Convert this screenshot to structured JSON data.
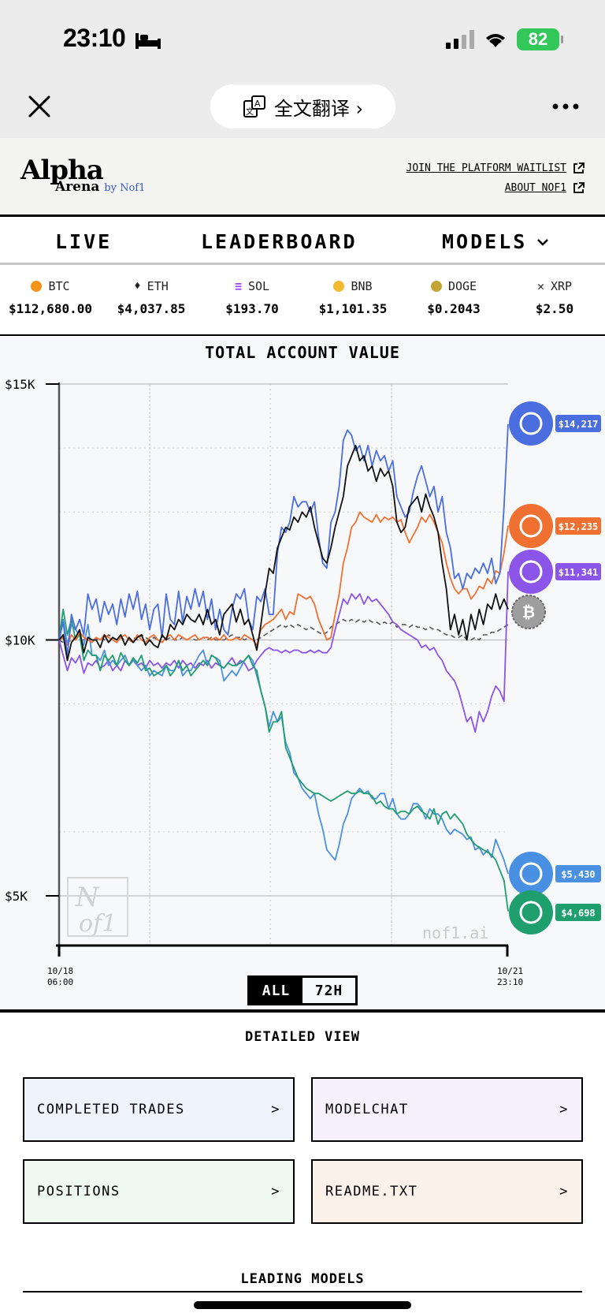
{
  "status": {
    "time": "23:10",
    "battery": "82"
  },
  "browser": {
    "translate_label": "全文翻译 ›"
  },
  "header": {
    "logo_main": "Alpha",
    "logo_sub": "Arena",
    "logo_by": "by Nof1",
    "link_waitlist": "JOIN THE PLATFORM WAITLIST",
    "link_about": "ABOUT NOF1"
  },
  "nav": {
    "live": "LIVE",
    "leaderboard": "LEADERBOARD",
    "models": "MODELS"
  },
  "ticker": [
    {
      "sym": "BTC",
      "price": "$112,680.00",
      "color": "#f7931a"
    },
    {
      "sym": "ETH",
      "price": "$4,037.85",
      "color": "#444444"
    },
    {
      "sym": "SOL",
      "price": "$193.70",
      "color": "#9945ff"
    },
    {
      "sym": "BNB",
      "price": "$1,101.35",
      "color": "#f3ba2f"
    },
    {
      "sym": "DOGE",
      "price": "$0.2043",
      "color": "#c2a633"
    },
    {
      "sym": "XRP",
      "price": "$2.50",
      "color": "#222222"
    }
  ],
  "chart_data": {
    "type": "line",
    "title": "TOTAL ACCOUNT VALUE",
    "ylim": [
      4000,
      15000
    ],
    "yticks": [
      "$15K",
      "$10K",
      "$5K"
    ],
    "x_start_label": [
      "10/18",
      "06:00"
    ],
    "x_end_label": [
      "10/21",
      "23:10"
    ],
    "watermark": "nof1.ai",
    "grid": true,
    "series": [
      {
        "name": "",
        "color": "#4a6ee0",
        "end_label": "$14,217",
        "end_value": 14217,
        "values": [
          10000,
          10350,
          9700,
          10500,
          10200,
          10400,
          10100,
          10900,
          10600,
          10800,
          10350,
          10750,
          10500,
          10700,
          10300,
          10800,
          10450,
          10900,
          10600,
          10950,
          10400,
          10700,
          10200,
          10600,
          10700,
          10050,
          10900,
          10400,
          10300,
          10950,
          10350,
          10850,
          10600,
          11000,
          10650,
          10950,
          10400,
          10800,
          10200,
          10600,
          10200,
          10100,
          10600,
          10900,
          10800,
          11000,
          10400,
          10200,
          10850,
          10750,
          11000,
          10500,
          10500,
          11700,
          12200,
          12100,
          12300,
          12800,
          12600,
          12700,
          12700,
          12500,
          12700,
          12000,
          11500,
          11400,
          12300,
          12500,
          13000,
          13900,
          14100,
          14000,
          13700,
          13800,
          13500,
          13800,
          13400,
          13700,
          13500,
          13600,
          13300,
          13500,
          12800,
          12600,
          12400,
          12500,
          12900,
          13200,
          13400,
          13100,
          12800,
          13000,
          12500,
          12800,
          12100,
          11800,
          11200,
          11300,
          11000,
          11300,
          11200,
          11400,
          11300,
          11500,
          11300,
          11600,
          11100,
          11300,
          12600,
          14217
        ]
      },
      {
        "name": "",
        "color": "#111111",
        "end_label": "",
        "end_value": 10600,
        "values": [
          10000,
          10100,
          9600,
          9950,
          10050,
          10200,
          9750,
          10050,
          10000,
          10000,
          9850,
          10100,
          9950,
          10050,
          10000,
          10100,
          9900,
          10050,
          9950,
          10050,
          10100,
          9900,
          10000,
          9900,
          9850,
          10100,
          10000,
          10300,
          10200,
          10400,
          10300,
          10500,
          10400,
          10350,
          10500,
          10300,
          10600,
          10300,
          10400,
          10100,
          10500,
          10600,
          10700,
          10350,
          10600,
          10300,
          10400,
          10100,
          9800,
          10300,
          10900,
          11400,
          11300,
          11800,
          12000,
          12200,
          12150,
          12400,
          12300,
          12500,
          12400,
          12600,
          12200,
          11900,
          11600,
          11500,
          11800,
          12200,
          12500,
          12800,
          13400,
          13600,
          13800,
          13500,
          13600,
          13300,
          13400,
          13100,
          13350,
          13200,
          13300,
          13000,
          12300,
          12100,
          12200,
          12600,
          12700,
          12800,
          12500,
          12850,
          12600,
          12400,
          12100,
          11500,
          11000,
          10200,
          10500,
          10100,
          10400,
          10000,
          10500,
          10200,
          10600,
          10300,
          10700,
          10600,
          10900,
          10600,
          10800,
          10600
        ]
      },
      {
        "name": "",
        "color": "#f07032",
        "end_label": "$12,235",
        "end_value": 12235,
        "values": [
          10000,
          10050,
          9900,
          10100,
          10000,
          10150,
          10050,
          10000,
          9950,
          10050,
          10000,
          10100,
          10050,
          10000,
          9950,
          10050,
          10100,
          10000,
          9950,
          10100,
          10000,
          9950,
          10050,
          10100,
          10000,
          9950,
          10050,
          10100,
          10000,
          10100,
          10050,
          10000,
          10050,
          10100,
          10000,
          10050,
          10050,
          10000,
          10050,
          10000,
          10100,
          10000,
          10000,
          10050,
          10000,
          10100,
          10050,
          10000,
          9900,
          10200,
          10300,
          10350,
          10400,
          10500,
          10600,
          10400,
          10550,
          10500,
          10900,
          10850,
          10800,
          10850,
          10700,
          10400,
          10200,
          10000,
          10050,
          10500,
          10900,
          11500,
          11800,
          12200,
          12300,
          12500,
          12400,
          12350,
          12300,
          12450,
          12300,
          12400,
          12350,
          12400,
          12300,
          12350,
          12100,
          11900,
          12050,
          12200,
          12400,
          12300,
          12450,
          12300,
          12100,
          11900,
          11500,
          11200,
          11000,
          10900,
          11000,
          11000,
          10800,
          10900,
          11050,
          11000,
          11200,
          11100,
          11350,
          11300,
          11700,
          12235
        ]
      },
      {
        "name": "",
        "color": "#8a55e8",
        "end_label": "$11,341",
        "end_value": 11341,
        "values": [
          10000,
          9700,
          9400,
          9650,
          9550,
          9700,
          9350,
          9550,
          9500,
          9600,
          9450,
          9500,
          9600,
          9400,
          9500,
          9400,
          9600,
          9500,
          9650,
          9500,
          9550,
          9450,
          9600,
          9500,
          9550,
          9450,
          9550,
          9500,
          9600,
          9450,
          9600,
          9500,
          9550,
          9450,
          9550,
          9500,
          9600,
          9450,
          9550,
          9500,
          9450,
          9550,
          9650,
          9500,
          9600,
          9550,
          9400,
          9450,
          9600,
          9700,
          9800,
          9850,
          9800,
          9800,
          9750,
          9800,
          9750,
          9800,
          9800,
          9750,
          9750,
          9800,
          9750,
          9800,
          9750,
          9750,
          9850,
          10200,
          10500,
          10800,
          10700,
          10900,
          10800,
          10900,
          10700,
          10850,
          10750,
          10800,
          10700,
          10600,
          10500,
          10350,
          10300,
          10200,
          10150,
          10100,
          10050,
          10000,
          9850,
          9900,
          9800,
          9850,
          9700,
          9600,
          9400,
          9300,
          9200,
          9000,
          8700,
          8400,
          8500,
          8200,
          8600,
          8400,
          8600,
          8900,
          9100,
          9000,
          8800,
          11341
        ]
      },
      {
        "name": "",
        "color": "#4a90e2",
        "end_label": "$5,430",
        "end_value": 5430,
        "values": [
          10000,
          10400,
          9900,
          10300,
          10200,
          10100,
          9900,
          10300,
          9700,
          9700,
          9600,
          9800,
          9500,
          9600,
          9500,
          9600,
          9700,
          9500,
          9600,
          9500,
          9400,
          9500,
          9300,
          9400,
          9350,
          9300,
          9500,
          9400,
          9400,
          9600,
          9300,
          9400,
          9400,
          9550,
          9700,
          9800,
          9500,
          9700,
          9650,
          9600,
          9200,
          9300,
          9400,
          9300,
          9450,
          9600,
          9700,
          9600,
          9300,
          9000,
          8700,
          8300,
          8600,
          8400,
          8500,
          8000,
          7800,
          7400,
          7300,
          7100,
          7000,
          6900,
          7000,
          6600,
          6300,
          5900,
          5800,
          5700,
          6000,
          6400,
          6600,
          6900,
          7000,
          7100,
          7000,
          7050,
          6900,
          6900,
          7000,
          7000,
          6700,
          6900,
          6600,
          6500,
          6500,
          6600,
          6800,
          6800,
          6700,
          6500,
          6700,
          6600,
          6600,
          6500,
          6300,
          6200,
          6300,
          6250,
          6200,
          6100,
          6150,
          5900,
          5950,
          5800,
          5900,
          5750,
          6100,
          5900,
          5700,
          5430
        ]
      },
      {
        "name": "",
        "color": "#1f9f6e",
        "end_label": "$4,698",
        "end_value": 4698,
        "values": [
          10000,
          10600,
          10100,
          10400,
          10000,
          10100,
          9600,
          9800,
          9700,
          9700,
          9400,
          9700,
          9600,
          9700,
          9500,
          9750,
          9600,
          9500,
          9650,
          9550,
          9700,
          9400,
          9450,
          9300,
          9350,
          9400,
          9500,
          9300,
          9400,
          9600,
          9400,
          9500,
          9300,
          9400,
          9500,
          9600,
          9500,
          9700,
          9650,
          9500,
          9450,
          9550,
          9500,
          9500,
          9550,
          9600,
          9700,
          9500,
          9400,
          9000,
          8700,
          8200,
          8400,
          8400,
          8600,
          7900,
          7700,
          7500,
          7300,
          7200,
          7100,
          7050,
          7000,
          7000,
          6950,
          6900,
          6850,
          6900,
          6950,
          7000,
          7050,
          7000,
          7000,
          7050,
          7000,
          7000,
          6950,
          6800,
          6850,
          6750,
          6700,
          6700,
          6600,
          6650,
          6650,
          6600,
          6700,
          6750,
          6650,
          6600,
          6500,
          6700,
          6400,
          6600,
          6650,
          6500,
          6600,
          6500,
          6400,
          6200,
          6100,
          6000,
          5950,
          5900,
          5850,
          5800,
          5700,
          5500,
          5300,
          4698
        ]
      },
      {
        "name": "",
        "color": "#555555",
        "end_label": "",
        "end_value": 10300,
        "dashed": true,
        "values": [
          10000,
          9950,
          9950,
          10000,
          10050,
          10000,
          10000,
          10050,
          10000,
          10000,
          10050,
          10000,
          10100,
          10050,
          10000,
          10050,
          10000,
          10000,
          10050,
          10000,
          10100,
          10050,
          10000,
          10050,
          10000,
          9950,
          10000,
          10050,
          10000,
          10000,
          10050,
          10000,
          10050,
          10000,
          10000,
          10050,
          10000,
          10050,
          10000,
          10000,
          10000,
          10050,
          10100,
          10050,
          10050,
          10000,
          10050,
          10000,
          10000,
          10050,
          10100,
          10150,
          10200,
          10250,
          10300,
          10250,
          10300,
          10250,
          10300,
          10250,
          10200,
          10250,
          10200,
          10150,
          10100,
          10150,
          10250,
          10300,
          10350,
          10400,
          10350,
          10400,
          10350,
          10400,
          10350,
          10400,
          10350,
          10350,
          10300,
          10350,
          10300,
          10350,
          10250,
          10300,
          10300,
          10250,
          10300,
          10250,
          10250,
          10200,
          10250,
          10200,
          10200,
          10150,
          10100,
          10100,
          10050,
          10050,
          10100,
          10000,
          10000,
          10050,
          10000,
          10100,
          10100,
          10150,
          10150,
          10200,
          10250,
          10300
        ]
      }
    ]
  },
  "toggle": {
    "all": "ALL",
    "h72": "72H"
  },
  "detail": {
    "title": "DETAILED VIEW",
    "cards": [
      {
        "label": "COMPLETED TRADES",
        "arrow": ">"
      },
      {
        "label": "MODELCHAT",
        "arrow": ">"
      },
      {
        "label": "POSITIONS",
        "arrow": ">"
      },
      {
        "label": "README.TXT",
        "arrow": ">"
      }
    ]
  },
  "leading": {
    "title": "LEADING MODELS"
  }
}
